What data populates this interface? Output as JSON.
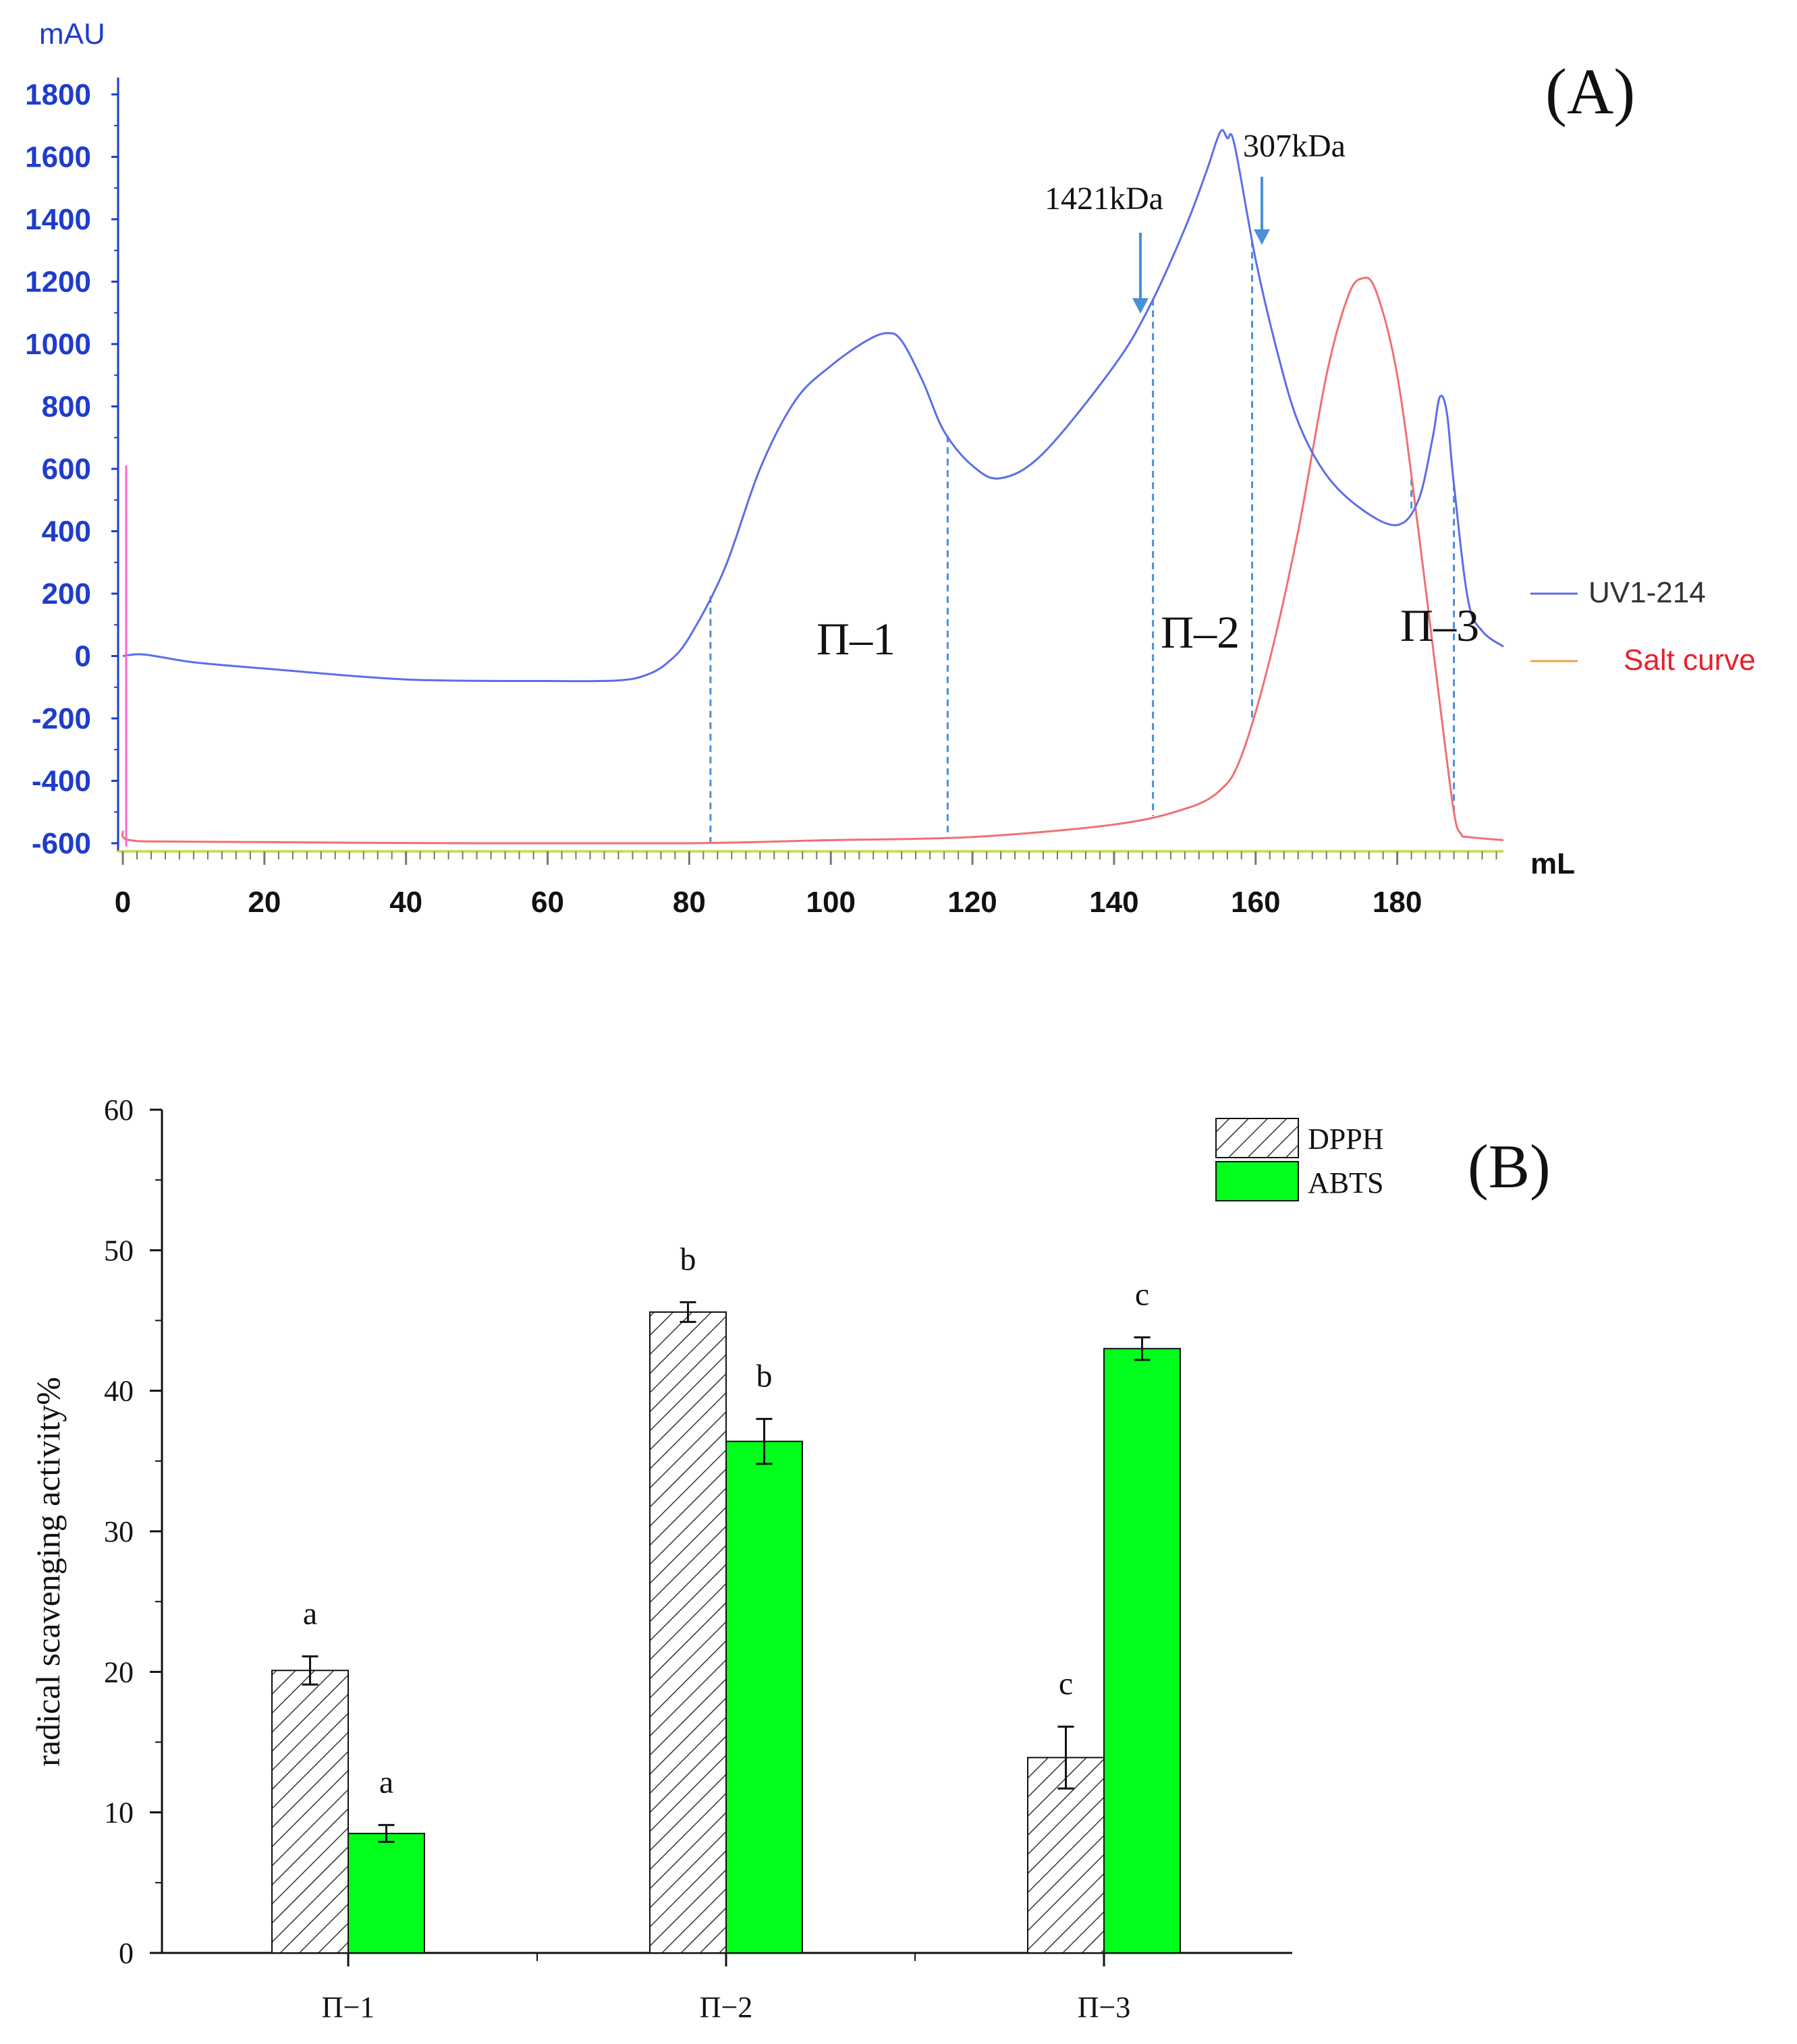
{
  "chart_data": [
    {
      "type": "line",
      "panel_label": "(A)",
      "ylabel": "mAU",
      "xlabel": "mL",
      "xlim": [
        0,
        195
      ],
      "ylim": [
        -600,
        1800
      ],
      "x_ticks": [
        "0",
        "20",
        "40",
        "60",
        "80",
        "100",
        "120",
        "140",
        "160",
        "180"
      ],
      "y_ticks": [
        "1800",
        "1600",
        "1400",
        "1200",
        "1000",
        "800",
        "600",
        "400",
        "200",
        "0",
        "-200",
        "-400",
        "-600"
      ],
      "colors": {
        "uv": "#5b6ee8",
        "salt": "#f07070",
        "tick_text": "#1f3ccc",
        "fraction_line": "#4a90d9",
        "baseline": "#c8e060"
      },
      "series": [
        {
          "name": "UV1-214",
          "color": "#5b6ee8",
          "x": [
            0,
            3,
            10,
            20,
            40,
            60,
            70,
            74,
            77,
            80,
            85,
            90,
            95,
            100,
            105,
            108,
            110,
            113,
            116,
            120,
            124,
            130,
            140,
            145,
            150,
            153,
            155,
            156,
            157,
            160,
            163,
            166,
            170,
            175,
            180,
            183,
            185,
            186,
            187,
            188,
            190,
            192,
            195
          ],
          "values": [
            0,
            5,
            -20,
            -40,
            -75,
            -80,
            -78,
            -60,
            -20,
            60,
            280,
            600,
            820,
            930,
            1010,
            1035,
            1010,
            880,
            720,
            610,
            570,
            650,
            930,
            1120,
            1370,
            1550,
            1680,
            1660,
            1640,
            1270,
            980,
            750,
            580,
            470,
            420,
            500,
            700,
            830,
            780,
            550,
            180,
            80,
            30
          ]
        },
        {
          "name": "Salt curve",
          "color": "#f07070",
          "x": [
            0,
            1,
            10,
            50,
            80,
            100,
            120,
            140,
            150,
            155,
            158,
            162,
            166,
            170,
            173,
            175,
            177,
            180,
            183,
            186,
            188,
            189,
            190,
            195
          ],
          "values": [
            -560,
            -590,
            -595,
            -600,
            -600,
            -590,
            -580,
            -540,
            -490,
            -430,
            -320,
            -10,
            400,
            900,
            1150,
            1210,
            1170,
            900,
            400,
            -150,
            -500,
            -570,
            -580,
            -590
          ]
        }
      ],
      "fraction_boundaries_x": [
        83,
        116.5,
        145.5,
        159.5,
        182,
        188
      ],
      "fractions": [
        "Π–1",
        "Π–2",
        "Π–3"
      ],
      "annotations": [
        {
          "text": "1421kDa",
          "x": 144.5
        },
        {
          "text": "307kDa",
          "x": 161.5
        }
      ],
      "legend": [
        "UV1-214",
        "Salt curve"
      ],
      "legend_position": "right"
    },
    {
      "type": "bar",
      "panel_label": "(B)",
      "ylabel": "radical scavenging activity%",
      "ylim": [
        0,
        60
      ],
      "y_ticks": [
        "0",
        "10",
        "20",
        "30",
        "40",
        "50",
        "60"
      ],
      "categories": [
        "Π−1",
        "Π−2",
        "Π−3"
      ],
      "series": [
        {
          "name": "DPPH",
          "fill": "hatched",
          "values": [
            20.1,
            45.6,
            13.9
          ],
          "errors": [
            1.0,
            0.7,
            2.2
          ],
          "letters": [
            "a",
            "b",
            "c"
          ]
        },
        {
          "name": "ABTS",
          "fill": "#00ff1a",
          "values": [
            8.5,
            36.4,
            43.0
          ],
          "errors": [
            0.6,
            1.6,
            0.8
          ],
          "letters": [
            "a",
            "b",
            "c"
          ]
        }
      ],
      "legend": [
        "DPPH",
        "ABTS"
      ],
      "legend_position": "top-right"
    }
  ]
}
